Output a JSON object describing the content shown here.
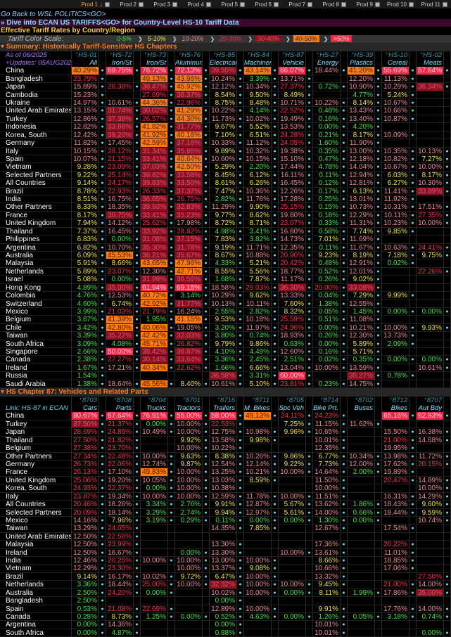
{
  "topbar": {
    "tabs": [
      "Prod 1",
      "Prod 2",
      "Prod 3",
      "Prod 4",
      "Prod 5",
      "Prod 6",
      "Prod 7",
      "Prod 8",
      "Prod 9",
      "Prod 10",
      "Prod 11"
    ],
    "active": "Prod 1"
  },
  "nav": {
    "go_back": "Go Back to WSL POLITICS<GO>",
    "dive": "» Dive into ECAN US TARIFFS<GO> for Country-Level HS-10 Tariff Data"
  },
  "title": "Effective Tariff Rates by Country/Region",
  "scale": {
    "label": "Tariff Color Scale:",
    "bands": [
      {
        "label": "0-5%",
        "color": "#40e040",
        "bg": ""
      },
      {
        "label": "5-10%",
        "color": "#f0e040",
        "bg": ""
      },
      {
        "label": "10-20%",
        "color": "#f08890",
        "bg": ""
      },
      {
        "label": "20-30%",
        "color": "#ff2a45",
        "bg": ""
      },
      {
        "label": "30-40%",
        "color": "#e05070",
        "bg": "#8a1020"
      },
      {
        "label": "40-50%",
        "color": "#402000",
        "bg": "#ff7a10"
      },
      {
        "label": ">50%",
        "color": "#ffd0d8",
        "bg": "#f02848"
      }
    ]
  },
  "summary": {
    "header": "Summary: Historically Tariff-Sensitive HS Chapters",
    "as_of": "As of 06/2025",
    "updates": "+Updates: 05AUG2025",
    "codes": [
      "HS-01",
      "HS-72",
      "HS-73",
      "HS-76",
      "HS-85",
      "HS-84",
      "HS-87",
      "HS-27",
      "HS-39",
      "HS-10",
      "HS-02"
    ],
    "columns": [
      "All",
      "Iron/St",
      "Iron/St",
      "Aluminum",
      "Electrical",
      "Machinery",
      "Vehicle",
      "Energy",
      "Plastics",
      "Cereal",
      "Meats"
    ],
    "rows": [
      {
        "name": "China",
        "v": [
          40.29,
          69.75,
          76.72,
          72.13,
          39.55,
          43.14,
          66.07,
          18.44,
          41.2,
          55.69,
          57.84
        ]
      },
      {
        "name": "Bangladesh",
        "v": [
          23.79,
          null,
          49.13,
          43.96,
          10.24,
          3.39,
          13.71,
          null,
          12.2,
          11.13,
          null
        ]
      },
      {
        "name": "Japan",
        "v": [
          15.89,
          28.38,
          38.47,
          45.92,
          12.12,
          10.34,
          27.37,
          0.72,
          10.9,
          10.29,
          36.34
        ]
      },
      {
        "name": "Cambodia",
        "v": [
          15.23,
          null,
          27.69,
          38.37,
          8.54,
          9.5,
          8.49,
          null,
          4.77,
          5.24,
          null
        ]
      },
      {
        "name": "Ukraine",
        "v": [
          14.97,
          10.61,
          44.36,
          22.96,
          8.75,
          8.48,
          10.71,
          10.22,
          8.14,
          10.67,
          null
        ]
      },
      {
        "name": "United Arab Emirates",
        "v": [
          13.15,
          31.74,
          30.02,
          41.29,
          10.22,
          4.14,
          22.52,
          0.48,
          13.43,
          10.66,
          null
        ]
      },
      {
        "name": "Turkey",
        "v": [
          12.86,
          37.38,
          26.57,
          44.3,
          11.73,
          10.02,
          19.49,
          0.16,
          13.4,
          10.87,
          null
        ]
      },
      {
        "name": "Indonesia",
        "v": [
          12.82,
          33.66,
          41.82,
          31.77,
          9.67,
          5.52,
          13.53,
          0.0,
          4.2,
          null,
          null
        ]
      },
      {
        "name": "Korea, South",
        "v": [
          12.42,
          39.2,
          41.92,
          40.16,
          7.1,
          6.51,
          24.28,
          0.21,
          8.17,
          10.09,
          null
        ]
      },
      {
        "name": "Germany",
        "v": [
          11.82,
          17.45,
          42.59,
          37.16,
          10.33,
          11.12,
          24.05,
          1.6,
          11.9,
          null,
          null
        ]
      },
      {
        "name": "Italy",
        "v": [
          10.15,
          28.12,
          31.34,
          35.86,
          9.89,
          10.32,
          19.38,
          0.35,
          13.0,
          10.35,
          10.13
        ]
      },
      {
        "name": "Spain",
        "v": [
          10.07,
          21.15,
          33.41,
          40.64,
          10.6,
          10.15,
          15.1,
          0.47,
          12.18,
          10.82,
          7.27
        ]
      },
      {
        "name": "Vietnam",
        "v": [
          9.28,
          23.09,
          37.03,
          42.5,
          5.29,
          2.2,
          17.44,
          4.78,
          14.04,
          10.67,
          10.0
        ]
      },
      {
        "name": "Selected Partners",
        "v": [
          9.22,
          25.14,
          39.82,
          33.58,
          8.45,
          6.12,
          16.11,
          0.11,
          12.94,
          6.03,
          8.17
        ]
      },
      {
        "name": "All Countries",
        "v": [
          9.14,
          24.17,
          39.83,
          33.5,
          8.61,
          6.26,
          16.45,
          0.12,
          12.81,
          6.27,
          10.3
        ]
      },
      {
        "name": "Brazil",
        "v": [
          8.78,
          22.93,
          26.33,
          37.37,
          7.47,
          10.36,
          12.26,
          0.17,
          6.13,
          11.41,
          33.89
        ]
      },
      {
        "name": "India",
        "v": [
          8.51,
          16.75,
          36.65,
          26.75,
          2.82,
          11.76,
          17.28,
          0.25,
          13.01,
          11.92,
          null
        ]
      },
      {
        "name": "Other Partners",
        "v": [
          8.33,
          18.35,
          39.93,
          32.83,
          11.29,
          9.9,
          25.15,
          0.15,
          10.73,
          10.31,
          17.51
        ]
      },
      {
        "name": "France",
        "v": [
          8.17,
          30.75,
          33.41,
          35.23,
          9.77,
          8.62,
          19.8,
          0.18,
          12.29,
          10.11,
          27.35
        ]
      },
      {
        "name": "United Kingdom",
        "v": [
          7.94,
          14.12,
          25.62,
          17.98,
          8.72,
          8.71,
          23.07,
          0.33,
          11.31,
          10.23,
          10.0
        ]
      },
      {
        "name": "Thailand",
        "v": [
          7.37,
          16.45,
          33.92,
          28.82,
          4.98,
          3.41,
          16.8,
          0.58,
          7.74,
          9.85,
          null
        ]
      },
      {
        "name": "Philippines",
        "v": [
          6.83,
          0.0,
          31.08,
          37.15,
          7.83,
          3.82,
          14.73,
          7.01,
          11.69,
          null,
          null
        ]
      },
      {
        "name": "Argentina",
        "v": [
          6.82,
          10.7,
          35.3,
          31.78,
          9.19,
          11.71,
          12.35,
          0.11,
          11.67,
          10.63,
          24.41
        ]
      },
      {
        "name": "Australia",
        "v": [
          6.09,
          45.53,
          36.21,
          35.67,
          8.67,
          10.88,
          20.9,
          9.23,
          8.19,
          7.18,
          9.75
        ]
      },
      {
        "name": "Malaysia",
        "v": [
          5.91,
          8.66,
          43.65,
          47.96,
          4.33,
          5.21,
          20.42,
          0.48,
          12.91,
          0.02,
          null
        ]
      },
      {
        "name": "Netherlands",
        "v": [
          5.89,
          23.07,
          12.3,
          42.71,
          8.55,
          5.56,
          18.77,
          0.52,
          12.01,
          null,
          22.26
        ]
      },
      {
        "name": "Israel",
        "v": [
          5.08,
          0.0,
          31.99,
          36.56,
          1.68,
          7.87,
          11.17,
          0.26,
          9.02,
          null,
          null
        ]
      },
      {
        "name": "Hong Kong",
        "v": [
          4.89,
          35.0,
          61.94,
          69.15,
          18.58,
          29.03,
          36.3,
          20.0,
          33.08,
          null,
          null
        ]
      },
      {
        "name": "Colombia",
        "v": [
          4.76,
          12.53,
          40.72,
          3.14,
          10.29,
          9.62,
          13.33,
          0.04,
          7.29,
          9.99,
          null
        ]
      },
      {
        "name": "Switzerland",
        "v": [
          4.6,
          6.74,
          42.92,
          31.77,
          10.13,
          10.11,
          7.6,
          1.38,
          12.55,
          null,
          null
        ]
      },
      {
        "name": "Mexico",
        "v": [
          3.99,
          21.03,
          21.79,
          16.24,
          2.55,
          2.82,
          8.32,
          0.05,
          1.45,
          0.0,
          0.0
        ]
      },
      {
        "name": "Belgium",
        "v": [
          3.87,
          41.39,
          1.95,
          41.15,
          9.53,
          10.18,
          25.59,
          0.51,
          11.08,
          null,
          null
        ]
      },
      {
        "name": "Chile",
        "v": [
          3.42,
          42.8,
          40.06,
          19.05,
          3.2,
          11.97,
          24.96,
          0.0,
          10.21,
          10.0,
          9.93
        ]
      },
      {
        "name": "Taiwan",
        "v": [
          3.39,
          35.22,
          42.42,
          32.03,
          3.8,
          0.74,
          18.93,
          0.26,
          12.3,
          13.73,
          null
        ]
      },
      {
        "name": "South Africa",
        "v": [
          3.09,
          4.08,
          45.71,
          26.82,
          9.79,
          9.86,
          0.63,
          0.0,
          5.89,
          2.09,
          null
        ]
      },
      {
        "name": "Singapore",
        "v": [
          2.66,
          50.0,
          38.42,
          36.87,
          4.1,
          4.49,
          12.6,
          0.16,
          5.71,
          null,
          null
        ]
      },
      {
        "name": "Canada",
        "v": [
          2.38,
          27.27,
          30.14,
          33.64,
          3.36,
          2.45,
          2.51,
          0.02,
          0.35,
          0.0,
          0.0
        ]
      },
      {
        "name": "Ireland",
        "v": [
          1.67,
          17.21,
          40.34,
          22.62,
          1.66,
          6.66,
          13.04,
          10.0,
          13.59,
          null,
          10.61
        ]
      },
      {
        "name": "Russia",
        "v": [
          1.54,
          null,
          null,
          null,
          36.58,
          3.31,
          60.0,
          null,
          35.27,
          0.78,
          null
        ]
      },
      {
        "name": "Saudi Arabia",
        "v": [
          1.38,
          18.64,
          45.56,
          8.4,
          10.61,
          5.1,
          23.81,
          0.23,
          14.75,
          null,
          null
        ]
      }
    ]
  },
  "vehicles": {
    "header": "HS Chapter 87: Vehicles and Related Parts",
    "link": "Link: HS-87 in ECAN",
    "codes": [
      "8703",
      "8708",
      "8704",
      "8701",
      "8716",
      "8711",
      "8705",
      "8714",
      "8702",
      "8712",
      "8707"
    ],
    "columns": [
      "Cars",
      "Parts",
      "Trucks",
      "Tractors",
      "Trailers",
      "M. Bikes",
      "Spc Veh",
      "Bike Prt.",
      "Buses",
      "Bikes",
      "Aut Bdy"
    ],
    "rows": [
      {
        "name": "China",
        "v": [
          80.67,
          67.64,
          76.91,
          55.0,
          58.0,
          49.13,
          24.11,
          24.23,
          null,
          65.16,
          62.93
        ]
      },
      {
        "name": "Turkey",
        "v": [
          37.5,
          21.37,
          0.0,
          10.0,
          22.53,
          null,
          7.25,
          11.15,
          11.62,
          null,
          null
        ]
      },
      {
        "name": "Japan",
        "v": [
          28.69,
          24.89,
          10.49,
          10.0,
          12.75,
          10.98,
          9.96,
          10.65,
          null,
          15.5,
          16.38
        ]
      },
      {
        "name": "Thailand",
        "v": [
          27.5,
          21.82,
          null,
          9.92,
          13.58,
          9.98,
          null,
          10.01,
          null,
          21.0,
          14.68
        ]
      },
      {
        "name": "Belgium",
        "v": [
          27.38,
          23.7,
          null,
          10.0,
          10.22,
          null,
          null,
          12.35,
          null,
          19.95,
          null
        ]
      },
      {
        "name": "Other Partners",
        "v": [
          27.34,
          22.48,
          10.0,
          9.63,
          8.38,
          10.26,
          9.86,
          6.77,
          10.34,
          13.98,
          11.72
        ]
      },
      {
        "name": "Germany",
        "v": [
          26.73,
          22.06,
          12.74,
          9.87,
          12.54,
          12.14,
          9.22,
          7.73,
          12.0,
          17.62,
          20.15
        ]
      },
      {
        "name": "France",
        "v": [
          26.13,
          17.1,
          49.83,
          10.0,
          13.25,
          10.21,
          10.0,
          14.64,
          2.0,
          19.89,
          null
        ]
      },
      {
        "name": "United Kingdom",
        "v": [
          25.06,
          19.2,
          10.05,
          10.0,
          13.03,
          8.59,
          null,
          11.5,
          null,
          20.47,
          14.89
        ]
      },
      {
        "name": "Korea, South",
        "v": [
          24.93,
          22.37,
          0.0,
          10.0,
          10.38,
          null,
          null,
          10.0,
          null,
          null,
          10.0
        ]
      },
      {
        "name": "Italy",
        "v": [
          23.87,
          19.34,
          10.0,
          10.0,
          12.59,
          11.78,
          10.0,
          11.51,
          null,
          16.31,
          14.29
        ]
      },
      {
        "name": "All Countries",
        "v": [
          20.46,
          18.26,
          3.34,
          2.76,
          9.91,
          12.87,
          5.67,
          13.62,
          1.86,
          18.43,
          9.6
        ]
      },
      {
        "name": "Selected Partners",
        "v": [
          20.09,
          18.14,
          3.29,
          2.74,
          9.94,
          12.97,
          5.61,
          14.0,
          0.66,
          18.44,
          9.59
        ]
      },
      {
        "name": "Mexico",
        "v": [
          14.16,
          7.96,
          3.19,
          0.29,
          0.11,
          0.0,
          0.0,
          1.3,
          0.0,
          null,
          10.74
        ]
      },
      {
        "name": "Taiwan",
        "v": [
          13.29,
          24.05,
          null,
          null,
          14.35,
          7.85,
          null,
          12.67,
          null,
          17.54,
          null
        ]
      },
      {
        "name": "United Arab Emirates",
        "v": [
          12.5,
          22.56,
          null,
          null,
          null,
          null,
          null,
          null,
          null,
          null,
          null
        ]
      },
      {
        "name": "Malaysia",
        "v": [
          12.5,
          23.99,
          null,
          null,
          13.3,
          null,
          null,
          17.36,
          null,
          20.22,
          null
        ]
      },
      {
        "name": "Ireland",
        "v": [
          12.5,
          16.67,
          null,
          0.0,
          13.3,
          null,
          10.0,
          13.61,
          null,
          11.01,
          null
        ]
      },
      {
        "name": "India",
        "v": [
          12.46,
          20.25,
          10.0,
          10.0,
          13.0,
          10.0,
          null,
          8.66,
          null,
          18.85,
          null
        ]
      },
      {
        "name": "Vietnam",
        "v": [
          12.29,
          23.3,
          null,
          10.0,
          13.37,
          9.08,
          null,
          10.66,
          null,
          17.06,
          null
        ]
      },
      {
        "name": "Brazil",
        "v": [
          9.14,
          16.17,
          10.02,
          9.72,
          6.47,
          10.0,
          null,
          13.32,
          null,
          null,
          27.5
        ]
      },
      {
        "name": "Netherlands",
        "v": [
          3.36,
          18.44,
          25.0,
          10.0,
          32.32,
          10.0,
          10.0,
          9.45,
          null,
          21.0,
          14.0
        ]
      },
      {
        "name": "Australia",
        "v": [
          2.5,
          24.2,
          0.0,
          null,
          10.02,
          10.0,
          0.0,
          8.11,
          1.99,
          17.86,
          35.0
        ]
      },
      {
        "name": "Bangladesh",
        "v": [
          2.5,
          null,
          null,
          null,
          0.0,
          null,
          null,
          null,
          null,
          null,
          null
        ]
      },
      {
        "name": "Spain",
        "v": [
          0.53,
          21.08,
          22.69,
          null,
          12.89,
          10.0,
          null,
          9.91,
          null,
          17.76,
          14.0
        ]
      },
      {
        "name": "Canada",
        "v": [
          0.28,
          8.73,
          1.25,
          0.0,
          0.52,
          4.63,
          0.0,
          1.26,
          0.05,
          3.18,
          0.74
        ]
      },
      {
        "name": "Argentina",
        "v": [
          0.0,
          14.36,
          null,
          null,
          0.0,
          null,
          null,
          10.01,
          null,
          null,
          null
        ]
      },
      {
        "name": "South Africa",
        "v": [
          0.0,
          4.87,
          null,
          null,
          0.88,
          null,
          null,
          10.01,
          null,
          null,
          0.0
        ]
      }
    ]
  }
}
